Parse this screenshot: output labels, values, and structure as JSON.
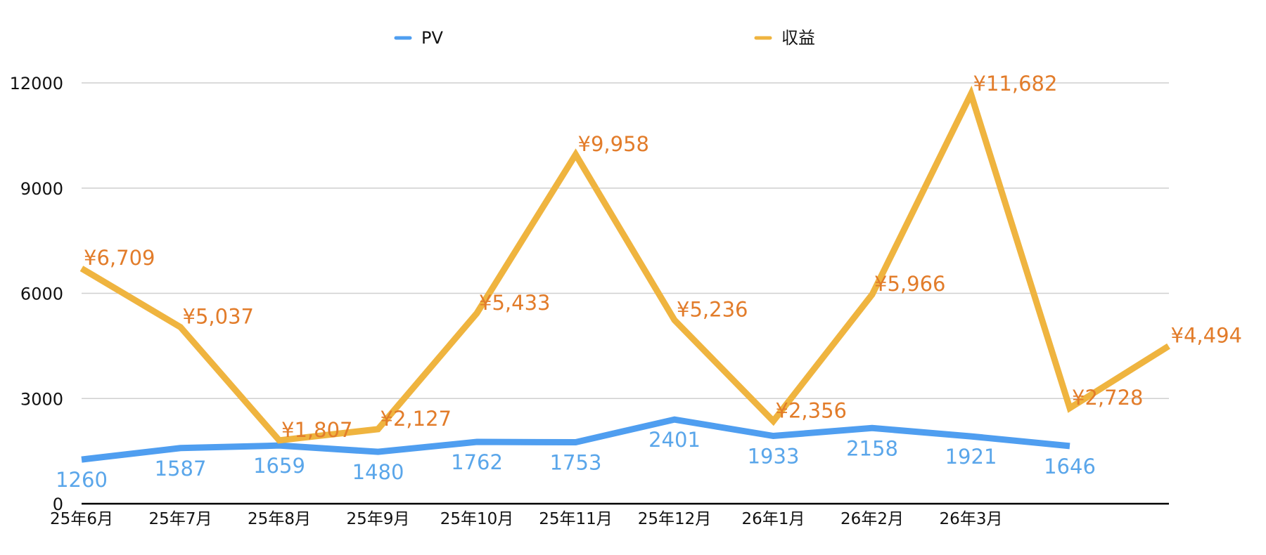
{
  "chart_data": {
    "type": "line",
    "title": "",
    "xlabel": "",
    "ylabel": "",
    "categories": [
      "25年6月",
      "25年7月",
      "25年8月",
      "25年9月",
      "25年10月",
      "25年11月",
      "25年12月",
      "26年1月",
      "26年2月",
      "26年3月",
      "",
      ""
    ],
    "ylim": [
      0,
      12000
    ],
    "yticks": [
      "0",
      "3000",
      "6000",
      "9000",
      "12000"
    ],
    "grid": true,
    "legend_position": "top",
    "series": [
      {
        "name": "PV",
        "color": "#4f9ef0",
        "label_color": "#5aa6ea",
        "values": [
          1260,
          1587,
          1659,
          1480,
          1762,
          1753,
          2401,
          1933,
          2158,
          1921,
          1646,
          null
        ],
        "labels": [
          "1260",
          "1587",
          "1659",
          "1480",
          "1762",
          "1753",
          "2401",
          "1933",
          "2158",
          "1921",
          "1646",
          ""
        ]
      },
      {
        "name": "収益",
        "color": "#efb43f",
        "label_color": "#e27c2a",
        "values": [
          6709,
          5037,
          1807,
          2127,
          5433,
          9958,
          5236,
          2356,
          5966,
          11682,
          2728,
          4494
        ],
        "labels": [
          "¥6,709",
          "¥5,037",
          "¥1,807",
          "¥2,127",
          "¥5,433",
          "¥9,958",
          "¥5,236",
          "¥2,356",
          "¥5,966",
          "¥11,682",
          "¥2,728",
          "¥4,494"
        ]
      }
    ]
  }
}
